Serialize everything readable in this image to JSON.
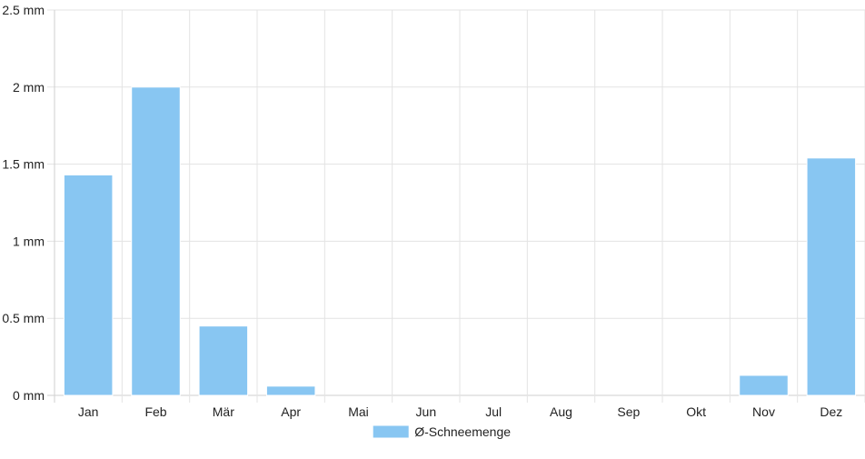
{
  "chart_data": {
    "type": "bar",
    "categories": [
      "Jan",
      "Feb",
      "Mär",
      "Apr",
      "Mai",
      "Jun",
      "Jul",
      "Aug",
      "Sep",
      "Okt",
      "Nov",
      "Dez"
    ],
    "series": [
      {
        "name": "Ø-Schneemenge",
        "values": [
          1.43,
          2.0,
          0.45,
          0.06,
          0,
          0,
          0,
          0,
          0,
          0,
          0.13,
          1.54
        ]
      }
    ],
    "y_ticks": [
      "0 mm",
      "0.5 mm",
      "1 mm",
      "1.5 mm",
      "2 mm",
      "2.5 mm"
    ],
    "y_tick_values": [
      0,
      0.5,
      1,
      1.5,
      2,
      2.5
    ],
    "ylim": [
      0,
      2.5
    ],
    "grid": true,
    "legend_position": "bottom",
    "colors": {
      "bar_fill": "#88c6f2",
      "bar_stroke": "#ffffff",
      "grid": "#e3e3e3",
      "axis": "#cfcfcf"
    }
  }
}
